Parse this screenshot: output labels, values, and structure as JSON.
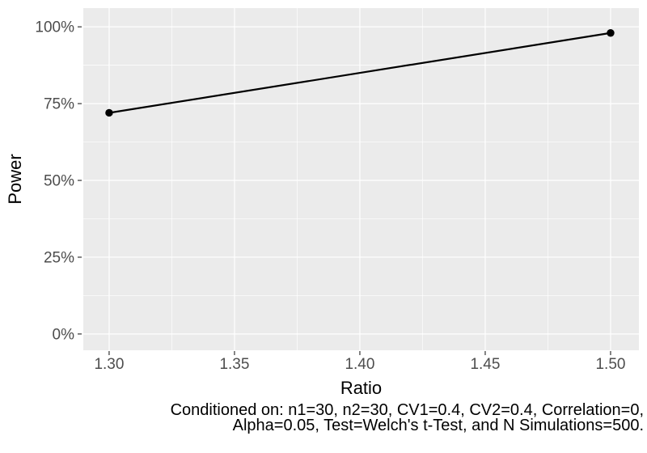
{
  "figure": {
    "background": "#ffffff"
  },
  "chart_data": {
    "type": "line",
    "title": "",
    "xlabel": "Ratio",
    "ylabel": "Power",
    "series": [
      {
        "name": "power-curve",
        "color": "#000000",
        "points": [
          {
            "x": 1.3,
            "y": 72
          },
          {
            "x": 1.5,
            "y": 98
          }
        ]
      }
    ],
    "x_ticks": [
      {
        "v": 1.3,
        "label": "1.30"
      },
      {
        "v": 1.35,
        "label": "1.35"
      },
      {
        "v": 1.4,
        "label": "1.40"
      },
      {
        "v": 1.45,
        "label": "1.45"
      },
      {
        "v": 1.5,
        "label": "1.50"
      }
    ],
    "y_ticks": [
      {
        "v": 0,
        "label": "0%"
      },
      {
        "v": 25,
        "label": "25%"
      },
      {
        "v": 50,
        "label": "50%"
      },
      {
        "v": 75,
        "label": "75%"
      },
      {
        "v": 100,
        "label": "100%"
      }
    ],
    "x_minor_breaks": [
      1.325,
      1.375,
      1.425,
      1.475
    ],
    "y_minor_breaks": [
      12.5,
      37.5,
      62.5,
      87.5
    ],
    "xlim": [
      1.2897,
      1.5113
    ],
    "ylim": [
      -5.3,
      106.1
    ],
    "y_unit": "%",
    "grid": "major+minor",
    "legend": "none"
  },
  "colors": {
    "panel_background": "#ebebeb",
    "grid": "#ffffff",
    "tick_mark": "#333333",
    "axis_text": "#4d4d4d",
    "axis_title": "#000000",
    "line": "#000000",
    "point": "#000000",
    "caption_text": "#000000"
  },
  "caption": {
    "lines": [
      "Conditioned on: n1=30, n2=30, CV1=0.4, CV2=0.4, Correlation=0,",
      "Alpha=0.05, Test=Welch's t-Test, and N Simulations=500."
    ]
  }
}
